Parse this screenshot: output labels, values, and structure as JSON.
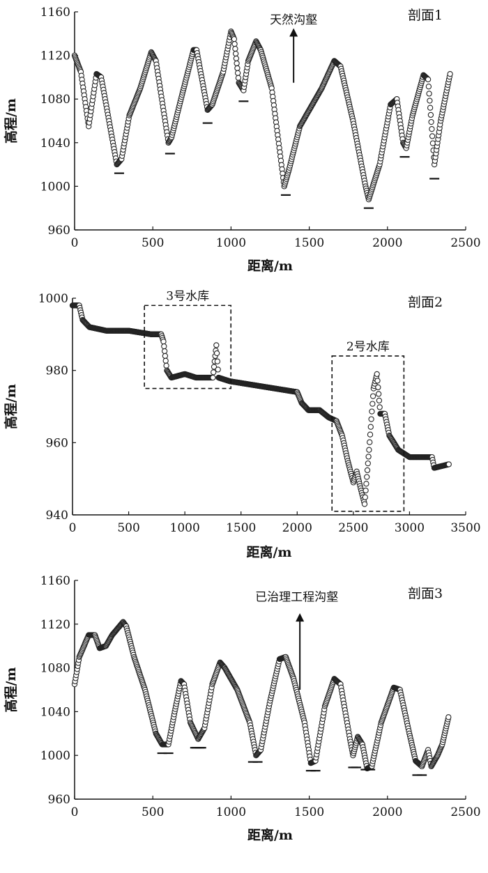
{
  "chart_data": [
    {
      "type": "scatter",
      "title": "剖面1",
      "xlabel": "距离/m",
      "ylabel": "高程/m",
      "xlim": [
        0,
        2500
      ],
      "ylim": [
        960,
        1160
      ],
      "xticks": [
        0,
        500,
        1000,
        1500,
        2000,
        2500
      ],
      "yticks": [
        960,
        1000,
        1040,
        1080,
        1120,
        1160
      ],
      "marker": "open-circle",
      "profile": [
        [
          0,
          1120
        ],
        [
          40,
          1105
        ],
        [
          90,
          1055
        ],
        [
          140,
          1103
        ],
        [
          170,
          1100
        ],
        [
          270,
          1020
        ],
        [
          300,
          1025
        ],
        [
          350,
          1065
        ],
        [
          420,
          1090
        ],
        [
          490,
          1123
        ],
        [
          520,
          1115
        ],
        [
          600,
          1040
        ],
        [
          620,
          1045
        ],
        [
          680,
          1080
        ],
        [
          760,
          1125
        ],
        [
          780,
          1125
        ],
        [
          850,
          1070
        ],
        [
          880,
          1075
        ],
        [
          950,
          1105
        ],
        [
          1000,
          1142
        ],
        [
          1020,
          1135
        ],
        [
          1050,
          1095
        ],
        [
          1080,
          1088
        ],
        [
          1110,
          1115
        ],
        [
          1160,
          1133
        ],
        [
          1190,
          1125
        ],
        [
          1260,
          1090
        ],
        [
          1340,
          1000
        ],
        [
          1370,
          1015
        ],
        [
          1440,
          1055
        ],
        [
          1500,
          1070
        ],
        [
          1580,
          1090
        ],
        [
          1660,
          1115
        ],
        [
          1700,
          1110
        ],
        [
          1780,
          1060
        ],
        [
          1860,
          1000
        ],
        [
          1880,
          988
        ],
        [
          1950,
          1020
        ],
        [
          2020,
          1075
        ],
        [
          2060,
          1080
        ],
        [
          2100,
          1040
        ],
        [
          2120,
          1035
        ],
        [
          2160,
          1065
        ],
        [
          2230,
          1102
        ],
        [
          2260,
          1098
        ],
        [
          2300,
          1020
        ],
        [
          2340,
          1060
        ],
        [
          2400,
          1103
        ]
      ],
      "trough_markers": [
        [
          285,
          1012
        ],
        [
          610,
          1030
        ],
        [
          850,
          1058
        ],
        [
          1080,
          1078
        ],
        [
          1350,
          992
        ],
        [
          1880,
          980
        ],
        [
          2110,
          1027
        ],
        [
          2300,
          1007
        ]
      ],
      "annotations": [
        {
          "text": "天然沟壑",
          "x": 1400,
          "y": 1153
        },
        {
          "arrow_from": [
            1400,
            1095
          ],
          "arrow_to": [
            1400,
            1145
          ]
        }
      ]
    },
    {
      "type": "scatter",
      "title": "剖面2",
      "xlabel": "距离/m",
      "ylabel": "高程/m",
      "xlim": [
        0,
        3500
      ],
      "ylim": [
        940,
        1000
      ],
      "xticks": [
        0,
        500,
        1000,
        1500,
        2000,
        2500,
        3000,
        3500
      ],
      "yticks": [
        940,
        960,
        980,
        1000
      ],
      "marker": "open-circle",
      "profile": [
        [
          0,
          998
        ],
        [
          60,
          998
        ],
        [
          90,
          994
        ],
        [
          150,
          992
        ],
        [
          300,
          991
        ],
        [
          500,
          991
        ],
        [
          700,
          990
        ],
        [
          790,
          990
        ],
        [
          810,
          988
        ],
        [
          840,
          980
        ],
        [
          880,
          978
        ],
        [
          1000,
          979
        ],
        [
          1100,
          978
        ],
        [
          1250,
          978
        ],
        [
          1280,
          987
        ],
        [
          1300,
          978
        ],
        [
          1400,
          977
        ],
        [
          1600,
          976
        ],
        [
          1800,
          975
        ],
        [
          2000,
          974
        ],
        [
          2040,
          971
        ],
        [
          2100,
          969
        ],
        [
          2200,
          969
        ],
        [
          2280,
          967
        ],
        [
          2350,
          966
        ],
        [
          2400,
          962
        ],
        [
          2450,
          955
        ],
        [
          2500,
          949
        ],
        [
          2530,
          952
        ],
        [
          2560,
          948
        ],
        [
          2600,
          943
        ],
        [
          2640,
          958
        ],
        [
          2680,
          975
        ],
        [
          2710,
          979
        ],
        [
          2740,
          968
        ],
        [
          2780,
          968
        ],
        [
          2820,
          962
        ],
        [
          2900,
          958
        ],
        [
          3000,
          956
        ],
        [
          3100,
          956
        ],
        [
          3200,
          956
        ],
        [
          3220,
          953
        ],
        [
          3350,
          954
        ]
      ],
      "annotations": [
        {
          "text": "3号水库",
          "box_x": [
            640,
            1410
          ],
          "box_y": [
            975,
            998
          ]
        },
        {
          "text": "2号水库",
          "box_x": [
            2310,
            2950
          ],
          "box_y": [
            941,
            984
          ]
        }
      ]
    },
    {
      "type": "scatter",
      "title": "剖面3",
      "xlabel": "距离/m",
      "ylabel": "高程/m",
      "xlim": [
        0,
        2500
      ],
      "ylim": [
        960,
        1160
      ],
      "xticks": [
        0,
        500,
        1000,
        1500,
        2000,
        2500
      ],
      "yticks": [
        960,
        1000,
        1040,
        1080,
        1120,
        1160
      ],
      "marker": "open-circle",
      "profile": [
        [
          0,
          1065
        ],
        [
          30,
          1090
        ],
        [
          90,
          1110
        ],
        [
          130,
          1110
        ],
        [
          160,
          1098
        ],
        [
          200,
          1100
        ],
        [
          240,
          1110
        ],
        [
          310,
          1122
        ],
        [
          330,
          1118
        ],
        [
          380,
          1090
        ],
        [
          450,
          1060
        ],
        [
          520,
          1020
        ],
        [
          560,
          1010
        ],
        [
          600,
          1010
        ],
        [
          640,
          1040
        ],
        [
          680,
          1068
        ],
        [
          700,
          1065
        ],
        [
          740,
          1030
        ],
        [
          790,
          1015
        ],
        [
          830,
          1025
        ],
        [
          880,
          1065
        ],
        [
          930,
          1085
        ],
        [
          960,
          1080
        ],
        [
          1040,
          1060
        ],
        [
          1120,
          1030
        ],
        [
          1160,
          1000
        ],
        [
          1190,
          1005
        ],
        [
          1250,
          1050
        ],
        [
          1310,
          1088
        ],
        [
          1350,
          1090
        ],
        [
          1400,
          1070
        ],
        [
          1470,
          1030
        ],
        [
          1510,
          993
        ],
        [
          1540,
          995
        ],
        [
          1600,
          1045
        ],
        [
          1660,
          1070
        ],
        [
          1700,
          1065
        ],
        [
          1760,
          1015
        ],
        [
          1780,
          1000
        ],
        [
          1810,
          1017
        ],
        [
          1840,
          1010
        ],
        [
          1870,
          988
        ],
        [
          1900,
          990
        ],
        [
          1960,
          1030
        ],
        [
          2040,
          1062
        ],
        [
          2080,
          1060
        ],
        [
          2140,
          1020
        ],
        [
          2180,
          995
        ],
        [
          2220,
          990
        ],
        [
          2260,
          1005
        ],
        [
          2280,
          990
        ],
        [
          2320,
          1000
        ],
        [
          2350,
          1010
        ],
        [
          2390,
          1035
        ]
      ],
      "trough_markers": [
        [
          560,
          1002
        ],
        [
          600,
          1002
        ],
        [
          770,
          1007
        ],
        [
          780,
          1007
        ],
        [
          800,
          1007
        ],
        [
          810,
          1007
        ],
        [
          1140,
          994
        ],
        [
          1170,
          994
        ],
        [
          1510,
          986
        ],
        [
          1540,
          986
        ],
        [
          1780,
          989
        ],
        [
          1800,
          989
        ],
        [
          1860,
          987
        ],
        [
          1890,
          987
        ],
        [
          2190,
          982
        ],
        [
          2220,
          982
        ]
      ],
      "annotations": [
        {
          "text": "已治理工程沟壑",
          "x": 1420,
          "y": 1145
        },
        {
          "arrow_from": [
            1440,
            1060
          ],
          "arrow_to": [
            1440,
            1130
          ]
        }
      ]
    }
  ]
}
